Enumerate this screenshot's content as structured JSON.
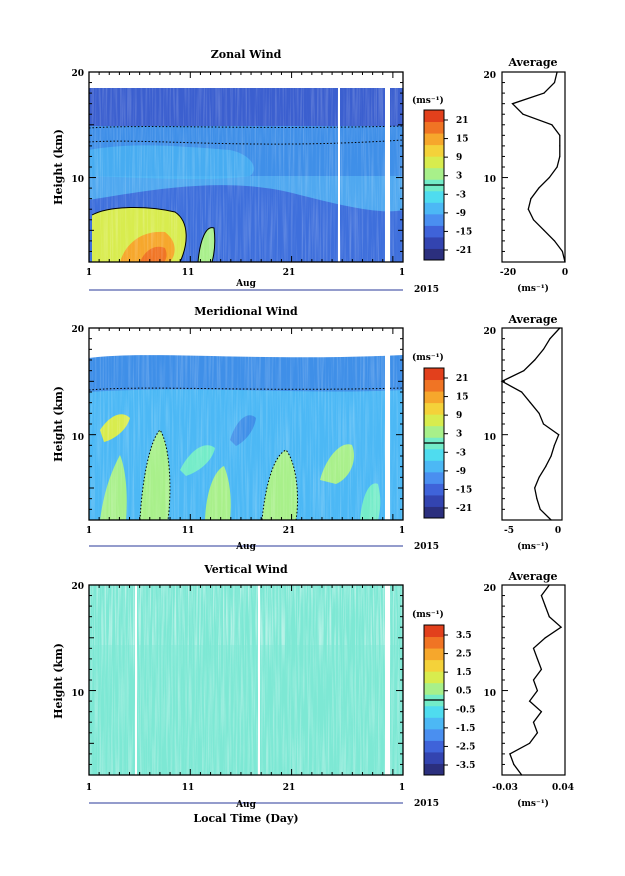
{
  "figure": {
    "xlabel": "Local Time (Day)",
    "month_label": "Aug",
    "year_label": "2015",
    "ylabel": "Height (km)",
    "unit_label": "(ms⁻¹)",
    "average_title": "Average",
    "x_ticks": [
      "1",
      "11",
      "21",
      "1"
    ],
    "y_ticks": [
      "20",
      "10"
    ]
  },
  "colors": {
    "colormap": [
      "#2b2f7e",
      "#3344b0",
      "#3f63d9",
      "#4a8ff0",
      "#4cb8f5",
      "#4fdcef",
      "#73ecc8",
      "#a8f08a",
      "#d8ec4e",
      "#f4d23a",
      "#f6a72c",
      "#f07424",
      "#e2401c"
    ],
    "background": "#ffffff",
    "line": "#000000"
  },
  "chart_data": [
    {
      "type": "heatmap",
      "title": "Zonal Wind",
      "xlabel": "Aug",
      "ylabel": "Height (km)",
      "xlim": [
        1,
        32
      ],
      "ylim": [
        2,
        20
      ],
      "x_tick_labels": [
        "1",
        "11",
        "21",
        "1"
      ],
      "y_tick_labels": [
        "20",
        "10"
      ],
      "colorbar": {
        "label": "(ms⁻¹)",
        "ticks": [
          "21",
          "15",
          "9",
          "3",
          "-3",
          "-9",
          "-15",
          "-21"
        ],
        "range": [
          -24,
          24
        ]
      },
      "profile": {
        "title": "Average",
        "xlabel": "(ms⁻¹)",
        "xlim": [
          -24,
          0
        ],
        "x_tick_labels": [
          "-20",
          "0"
        ],
        "height": [
          2,
          3,
          4,
          5,
          6,
          7,
          8,
          9,
          10,
          11,
          12,
          13,
          14,
          15,
          16,
          17,
          18,
          19,
          20
        ],
        "values": [
          0,
          -1,
          -4,
          -8,
          -12,
          -14,
          -13,
          -10,
          -6,
          -3,
          -2,
          -2,
          -2,
          -5,
          -16,
          -20,
          -8,
          -4,
          -3
        ]
      }
    },
    {
      "type": "heatmap",
      "title": "Meridional Wind",
      "xlabel": "Aug",
      "ylabel": "Height (km)",
      "xlim": [
        1,
        32
      ],
      "ylim": [
        2,
        20
      ],
      "x_tick_labels": [
        "1",
        "11",
        "21",
        "1"
      ],
      "y_tick_labels": [
        "20",
        "10"
      ],
      "colorbar": {
        "label": "(ms⁻¹)",
        "ticks": [
          "21",
          "15",
          "9",
          "3",
          "-3",
          "-9",
          "-15",
          "-21"
        ],
        "range": [
          -24,
          24
        ]
      },
      "profile": {
        "title": "Average",
        "xlabel": "(ms⁻¹)",
        "xlim": [
          -5,
          0.5
        ],
        "x_tick_labels": [
          "-5",
          "0"
        ],
        "height": [
          2,
          3,
          4,
          5,
          6,
          7,
          8,
          9,
          10,
          11,
          12,
          13,
          14,
          15,
          16,
          17,
          18,
          19,
          20
        ],
        "values": [
          -0.5,
          -1.5,
          -1.8,
          -2.0,
          -1.6,
          -1.0,
          -0.5,
          -0.2,
          0.2,
          -1.2,
          -1.6,
          -2.4,
          -3.2,
          -5.0,
          -3.0,
          -2.0,
          -1.2,
          -0.6,
          0.3
        ]
      }
    },
    {
      "type": "heatmap",
      "title": "Vertical Wind",
      "xlabel": "Local Time (Day)",
      "ylabel": "Height (km)",
      "xlim": [
        1,
        32
      ],
      "ylim": [
        2,
        20
      ],
      "x_tick_labels": [
        "1",
        "11",
        "21",
        "1"
      ],
      "y_tick_labels": [
        "20",
        "10"
      ],
      "colorbar": {
        "label": "(ms⁻¹)",
        "ticks": [
          "3.5",
          "2.5",
          "1.5",
          "0.5",
          "-0.5",
          "-1.5",
          "-2.5",
          "-3.5"
        ],
        "range": [
          -4,
          4
        ]
      },
      "profile": {
        "title": "Average",
        "xlabel": "(ms⁻¹)",
        "xlim": [
          -0.04,
          0.04
        ],
        "x_tick_labels": [
          "-0.03",
          "0.04"
        ],
        "height": [
          2,
          3,
          4,
          5,
          6,
          7,
          8,
          9,
          10,
          11,
          12,
          13,
          14,
          15,
          16,
          17,
          18,
          19,
          20
        ],
        "values": [
          -0.015,
          -0.025,
          -0.03,
          -0.005,
          0.005,
          0.0,
          0.01,
          -0.005,
          0.005,
          0.0,
          0.01,
          0.005,
          0.0,
          0.015,
          0.035,
          0.02,
          0.015,
          0.01,
          0.02
        ]
      }
    }
  ]
}
